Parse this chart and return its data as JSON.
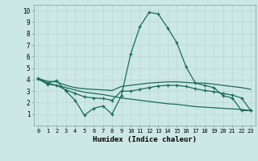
{
  "xlabel": "Humidex (Indice chaleur)",
  "xlim": [
    -0.5,
    23.5
  ],
  "ylim": [
    0,
    10.5
  ],
  "xticks": [
    0,
    1,
    2,
    3,
    4,
    5,
    6,
    7,
    8,
    9,
    10,
    11,
    12,
    13,
    14,
    15,
    16,
    17,
    18,
    19,
    20,
    21,
    22,
    23
  ],
  "yticks": [
    1,
    2,
    3,
    4,
    5,
    6,
    7,
    8,
    9,
    10
  ],
  "bg_color": "#cce8e5",
  "grid_color": "#b8d8d4",
  "line_color": "#1a6b5a",
  "line1_x": [
    0,
    1,
    2,
    3,
    4,
    5,
    6,
    7,
    8,
    9,
    10,
    11,
    12,
    13,
    14,
    15,
    16,
    17,
    18,
    19,
    20,
    21,
    22,
    23
  ],
  "line1_y": [
    4.1,
    3.7,
    3.9,
    3.0,
    2.2,
    0.9,
    1.5,
    1.7,
    1.0,
    2.6,
    6.2,
    8.6,
    9.85,
    9.7,
    8.5,
    7.2,
    5.1,
    3.7,
    3.5,
    3.3,
    2.6,
    2.4,
    1.3,
    1.3
  ],
  "line2_x": [
    0,
    1,
    2,
    3,
    4,
    5,
    6,
    7,
    8,
    9,
    10,
    11,
    12,
    13,
    14,
    15,
    16,
    17,
    18,
    19,
    20,
    21,
    22,
    23
  ],
  "line2_y": [
    4.1,
    3.85,
    3.8,
    3.5,
    3.3,
    3.2,
    3.15,
    3.1,
    3.05,
    3.4,
    3.5,
    3.6,
    3.7,
    3.75,
    3.8,
    3.8,
    3.75,
    3.7,
    3.7,
    3.6,
    3.5,
    3.4,
    3.3,
    3.15
  ],
  "line3_x": [
    0,
    1,
    2,
    3,
    4,
    5,
    6,
    7,
    8,
    9,
    10,
    11,
    12,
    13,
    14,
    15,
    16,
    17,
    18,
    19,
    20,
    21,
    22,
    23
  ],
  "line3_y": [
    4.05,
    3.6,
    3.5,
    3.1,
    2.8,
    2.5,
    2.4,
    2.35,
    2.2,
    3.0,
    3.0,
    3.15,
    3.3,
    3.45,
    3.5,
    3.5,
    3.4,
    3.2,
    3.05,
    2.95,
    2.8,
    2.65,
    2.4,
    1.3
  ],
  "line4_x": [
    0,
    1,
    2,
    3,
    4,
    5,
    6,
    7,
    8,
    9,
    10,
    11,
    12,
    13,
    14,
    15,
    16,
    17,
    18,
    19,
    20,
    21,
    22,
    23
  ],
  "line4_y": [
    4.05,
    3.7,
    3.5,
    3.3,
    3.1,
    2.9,
    2.8,
    2.7,
    2.55,
    2.4,
    2.3,
    2.2,
    2.1,
    2.0,
    1.9,
    1.85,
    1.75,
    1.65,
    1.6,
    1.55,
    1.5,
    1.45,
    1.4,
    1.3
  ]
}
